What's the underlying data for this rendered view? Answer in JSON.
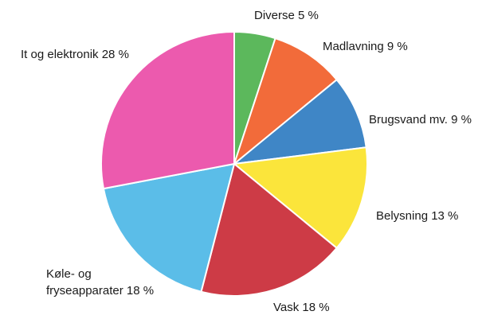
{
  "chart_data": {
    "type": "pie",
    "slices": [
      {
        "label": "Diverse 5 %",
        "value": 5,
        "color": "#5cb85c"
      },
      {
        "label": "Madlavning 9 %",
        "value": 9,
        "color": "#f26b3a"
      },
      {
        "label": "Brugsvand mv. 9 %",
        "value": 9,
        "color": "#3f86c6"
      },
      {
        "label": "Belysning 13 %",
        "value": 13,
        "color": "#fbe53b"
      },
      {
        "label": "Vask 18 %",
        "value": 18,
        "color": "#cd3b46"
      },
      {
        "label_lines": [
          "Køle- og",
          "fryseapparater 18 %"
        ],
        "value": 18,
        "color": "#5bbde8"
      },
      {
        "label": "It og elektronik 28 %",
        "value": 28,
        "color": "#ec5aae"
      }
    ],
    "legend": "none"
  }
}
